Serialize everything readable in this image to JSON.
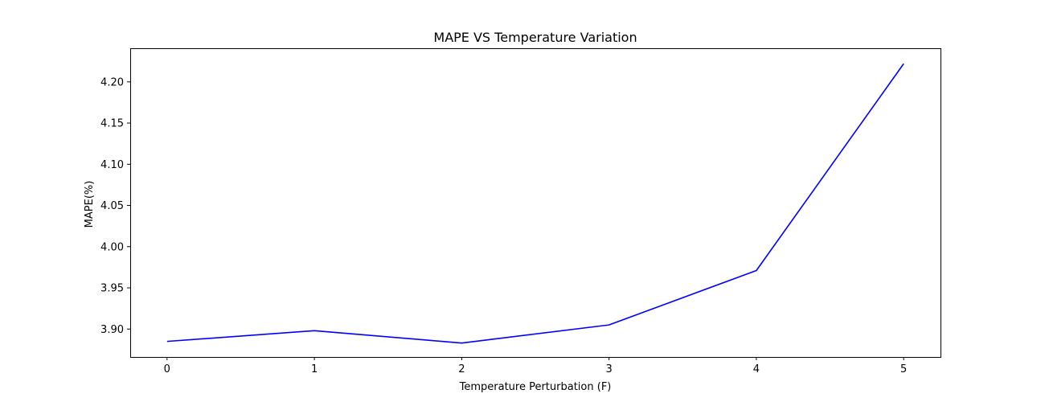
{
  "chart_data": {
    "type": "line",
    "title": "MAPE VS Temperature Variation",
    "xlabel": "Temperature Perturbation (F)",
    "ylabel": "MAPE(%)",
    "x": [
      0,
      1,
      2,
      3,
      4,
      5
    ],
    "series": [
      {
        "values": [
          3.885,
          3.898,
          3.883,
          3.905,
          3.971,
          4.222
        ],
        "color": "#0000ff"
      }
    ],
    "xticks": [
      "0",
      "1",
      "2",
      "3",
      "4",
      "5"
    ],
    "yticks": [
      "3.90",
      "3.95",
      "4.00",
      "4.05",
      "4.10",
      "4.15",
      "4.20"
    ],
    "xlim": [
      -0.25,
      5.25
    ],
    "ylim": [
      3.8661,
      4.2408
    ],
    "grid": false
  }
}
